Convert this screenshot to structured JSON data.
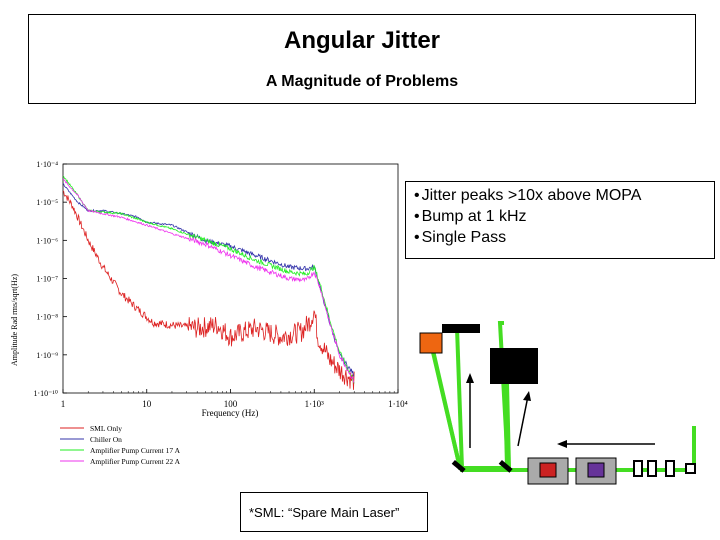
{
  "header": {
    "title": "Angular Jitter",
    "subtitle": "A Magnitude of Problems"
  },
  "bullets": [
    "Jitter peaks >10x above MOPA",
    "Bump at 1 kHz",
    "Single Pass"
  ],
  "footnote": "*SML: “Spare Main Laser”",
  "chart_data": {
    "type": "line",
    "xlabel": "Frequency (Hz)",
    "ylabel": "Amplitude Rad rms/sqrt(Hz)",
    "x_scale": "log",
    "y_scale": "log",
    "xlim": [
      1,
      10000
    ],
    "ylim": [
      1e-10,
      0.0001
    ],
    "x_ticks": [
      "1",
      "10",
      "100",
      "1·10³",
      "1·10⁴"
    ],
    "y_ticks": [
      "1·10⁻⁴",
      "1·10⁻⁵",
      "1·10⁻⁶",
      "1·10⁻⁷",
      "1·10⁻⁸",
      "1·10⁻⁹",
      "1·10⁻¹⁰"
    ],
    "legend_position": "below",
    "series": [
      {
        "name": "SML Only",
        "color": "#dd2222",
        "x": [
          1,
          1.3,
          2,
          3,
          5,
          8,
          12,
          20,
          40,
          70,
          100,
          200,
          400,
          700,
          900,
          1000,
          1100,
          1500,
          2000,
          3000
        ],
        "y": [
          2e-05,
          8e-06,
          1e-06,
          2e-07,
          4e-08,
          1.5e-08,
          7e-09,
          6e-09,
          5e-09,
          6e-09,
          3e-09,
          5e-09,
          3e-09,
          4e-09,
          8e-09,
          1.5e-08,
          3e-09,
          8e-10,
          4e-10,
          2e-10
        ]
      },
      {
        "name": "Chiller On",
        "color": "#3333aa",
        "x": [
          1,
          1.5,
          2,
          3,
          5,
          8,
          10,
          20,
          50,
          100,
          200,
          500,
          800,
          1000,
          1200,
          1500,
          2000,
          3000
        ],
        "y": [
          3e-05,
          1e-05,
          6e-06,
          6e-06,
          5e-06,
          4e-06,
          3e-06,
          2.5e-06,
          1e-06,
          7e-07,
          4e-07,
          2e-07,
          1.8e-07,
          2e-07,
          5e-08,
          8e-09,
          1e-09,
          3e-10
        ]
      },
      {
        "name": "Amplifier Pump Current 17 A",
        "color": "#22ee22",
        "x": [
          1,
          1.5,
          2,
          5,
          10,
          20,
          50,
          100,
          200,
          500,
          800,
          1000,
          1200,
          1500,
          2000,
          3000
        ],
        "y": [
          5e-05,
          1.5e-05,
          6e-06,
          5e-06,
          3e-06,
          2e-06,
          1e-06,
          6e-07,
          3e-07,
          1.5e-07,
          1.3e-07,
          2e-07,
          6e-08,
          1e-08,
          1.2e-09,
          2e-10
        ]
      },
      {
        "name": "Amplifier Pump Current 22 A",
        "color": "#ee33ee",
        "x": [
          1,
          1.5,
          2,
          5,
          10,
          20,
          50,
          100,
          200,
          500,
          800,
          1000,
          1200,
          1500,
          2000,
          3000
        ],
        "y": [
          4e-05,
          1.5e-05,
          6e-06,
          4e-06,
          2.5e-06,
          1.5e-06,
          8e-07,
          4e-07,
          2e-07,
          1e-07,
          9e-08,
          1.5e-07,
          5e-08,
          8e-09,
          1e-09,
          2e-10
        ]
      }
    ]
  },
  "diagram": {
    "colors": {
      "beam": "#44dd22",
      "source": "#ee6611",
      "block": "#000000",
      "plate": "#aaaaaa",
      "rod_red": "#cc2222",
      "rod_purple": "#663399"
    }
  }
}
